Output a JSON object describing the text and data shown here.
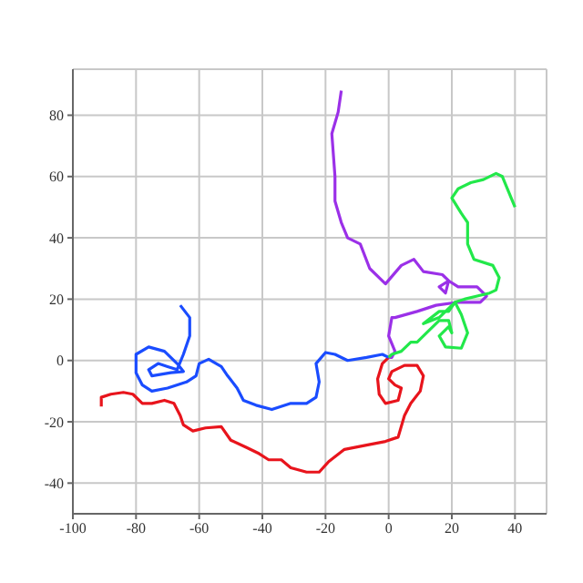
{
  "chart_data": {
    "type": "line",
    "xlim": [
      -100,
      50
    ],
    "ylim": [
      -50,
      95
    ],
    "xticks": [
      -100,
      -80,
      -60,
      -40,
      -20,
      0,
      20,
      40
    ],
    "yticks": [
      -40,
      -20,
      0,
      20,
      40,
      60,
      80
    ],
    "grid": true,
    "marker": "none",
    "line_style": "solid",
    "series": [
      {
        "color": "#e8141c",
        "x": [
          0,
          -2,
          -3.5,
          -3,
          -1,
          3,
          4,
          2,
          0,
          1,
          5,
          9,
          11,
          10,
          7,
          5,
          3,
          -1,
          -7,
          -14,
          -19,
          -22,
          -26,
          -31,
          -34,
          -38,
          -41,
          -45,
          -50,
          -53,
          -58,
          -62,
          -65,
          -66,
          -68,
          -71,
          -75,
          -78,
          -81,
          -84,
          -88,
          -91,
          -91
        ],
        "values": [
          1,
          -1,
          -6,
          -11,
          -14,
          -13,
          -9,
          -8,
          -6,
          -3.6,
          -1.6,
          -1.6,
          -5,
          -10,
          -14,
          -18,
          -25,
          -26.4,
          -27.6,
          -29,
          -33,
          -36.4,
          -36.4,
          -35,
          -32.4,
          -32.4,
          -30.4,
          -28.4,
          -26,
          -21.6,
          -22,
          -23,
          -21,
          -18,
          -14,
          -13,
          -14,
          -14,
          -11,
          -10.4,
          -11,
          -12,
          -15
        ]
      },
      {
        "color": "#1a4cff",
        "x": [
          0,
          -2,
          -7,
          -13,
          -17,
          -20,
          -23,
          -22,
          -23,
          -26,
          -31,
          -37,
          -42,
          -46,
          -48,
          -51,
          -53,
          -57,
          -60,
          -61,
          -64,
          -70,
          -75,
          -78,
          -80,
          -80,
          -76,
          -71,
          -67,
          -65,
          -69,
          -75,
          -76,
          -73,
          -70,
          -67,
          -65,
          -63,
          -63,
          -66
        ],
        "values": [
          1,
          2,
          1,
          0,
          2,
          2.6,
          -1,
          -7,
          -12,
          -14,
          -14,
          -16,
          -14.6,
          -13,
          -9,
          -5,
          -2,
          0.4,
          -1,
          -5,
          -7,
          -9,
          -10,
          -8,
          -4,
          2,
          4.4,
          3,
          -1,
          -3.6,
          -4,
          -5,
          -3,
          -1,
          -2,
          -3,
          2,
          8,
          14,
          18
        ]
      },
      {
        "color": "#9b30e8",
        "x": [
          0,
          1,
          2,
          0,
          1,
          2,
          9,
          15,
          22,
          29,
          31,
          28,
          22,
          19,
          16,
          18,
          19,
          17,
          11,
          8,
          4,
          -1,
          -6,
          -9,
          -13,
          -15,
          -17,
          -17,
          -18,
          -16,
          -15
        ],
        "values": [
          1,
          1,
          3,
          8,
          14,
          14,
          16,
          18,
          19,
          19,
          21,
          24,
          24,
          26,
          24,
          22,
          26,
          28,
          29,
          33,
          31,
          25,
          30,
          38,
          40,
          45,
          52,
          60,
          74,
          81,
          88
        ]
      },
      {
        "color": "#22e84a",
        "x": [
          0,
          1,
          4,
          7,
          9,
          12,
          16,
          19,
          20,
          19,
          16,
          18,
          23,
          25,
          23,
          21,
          16,
          11,
          16,
          19,
          21,
          24,
          28,
          32,
          34,
          35,
          33,
          27,
          25,
          25,
          23,
          20,
          22,
          26,
          30,
          34,
          36,
          38,
          40
        ],
        "values": [
          1,
          2,
          3,
          6,
          6,
          9,
          13,
          13,
          9,
          11,
          8,
          4.4,
          4,
          9,
          15,
          19,
          14,
          12,
          16,
          16,
          19,
          20,
          21,
          22,
          23,
          27,
          31,
          33,
          38,
          45,
          48,
          53,
          56,
          58,
          59,
          61,
          60,
          55,
          50
        ]
      }
    ]
  }
}
